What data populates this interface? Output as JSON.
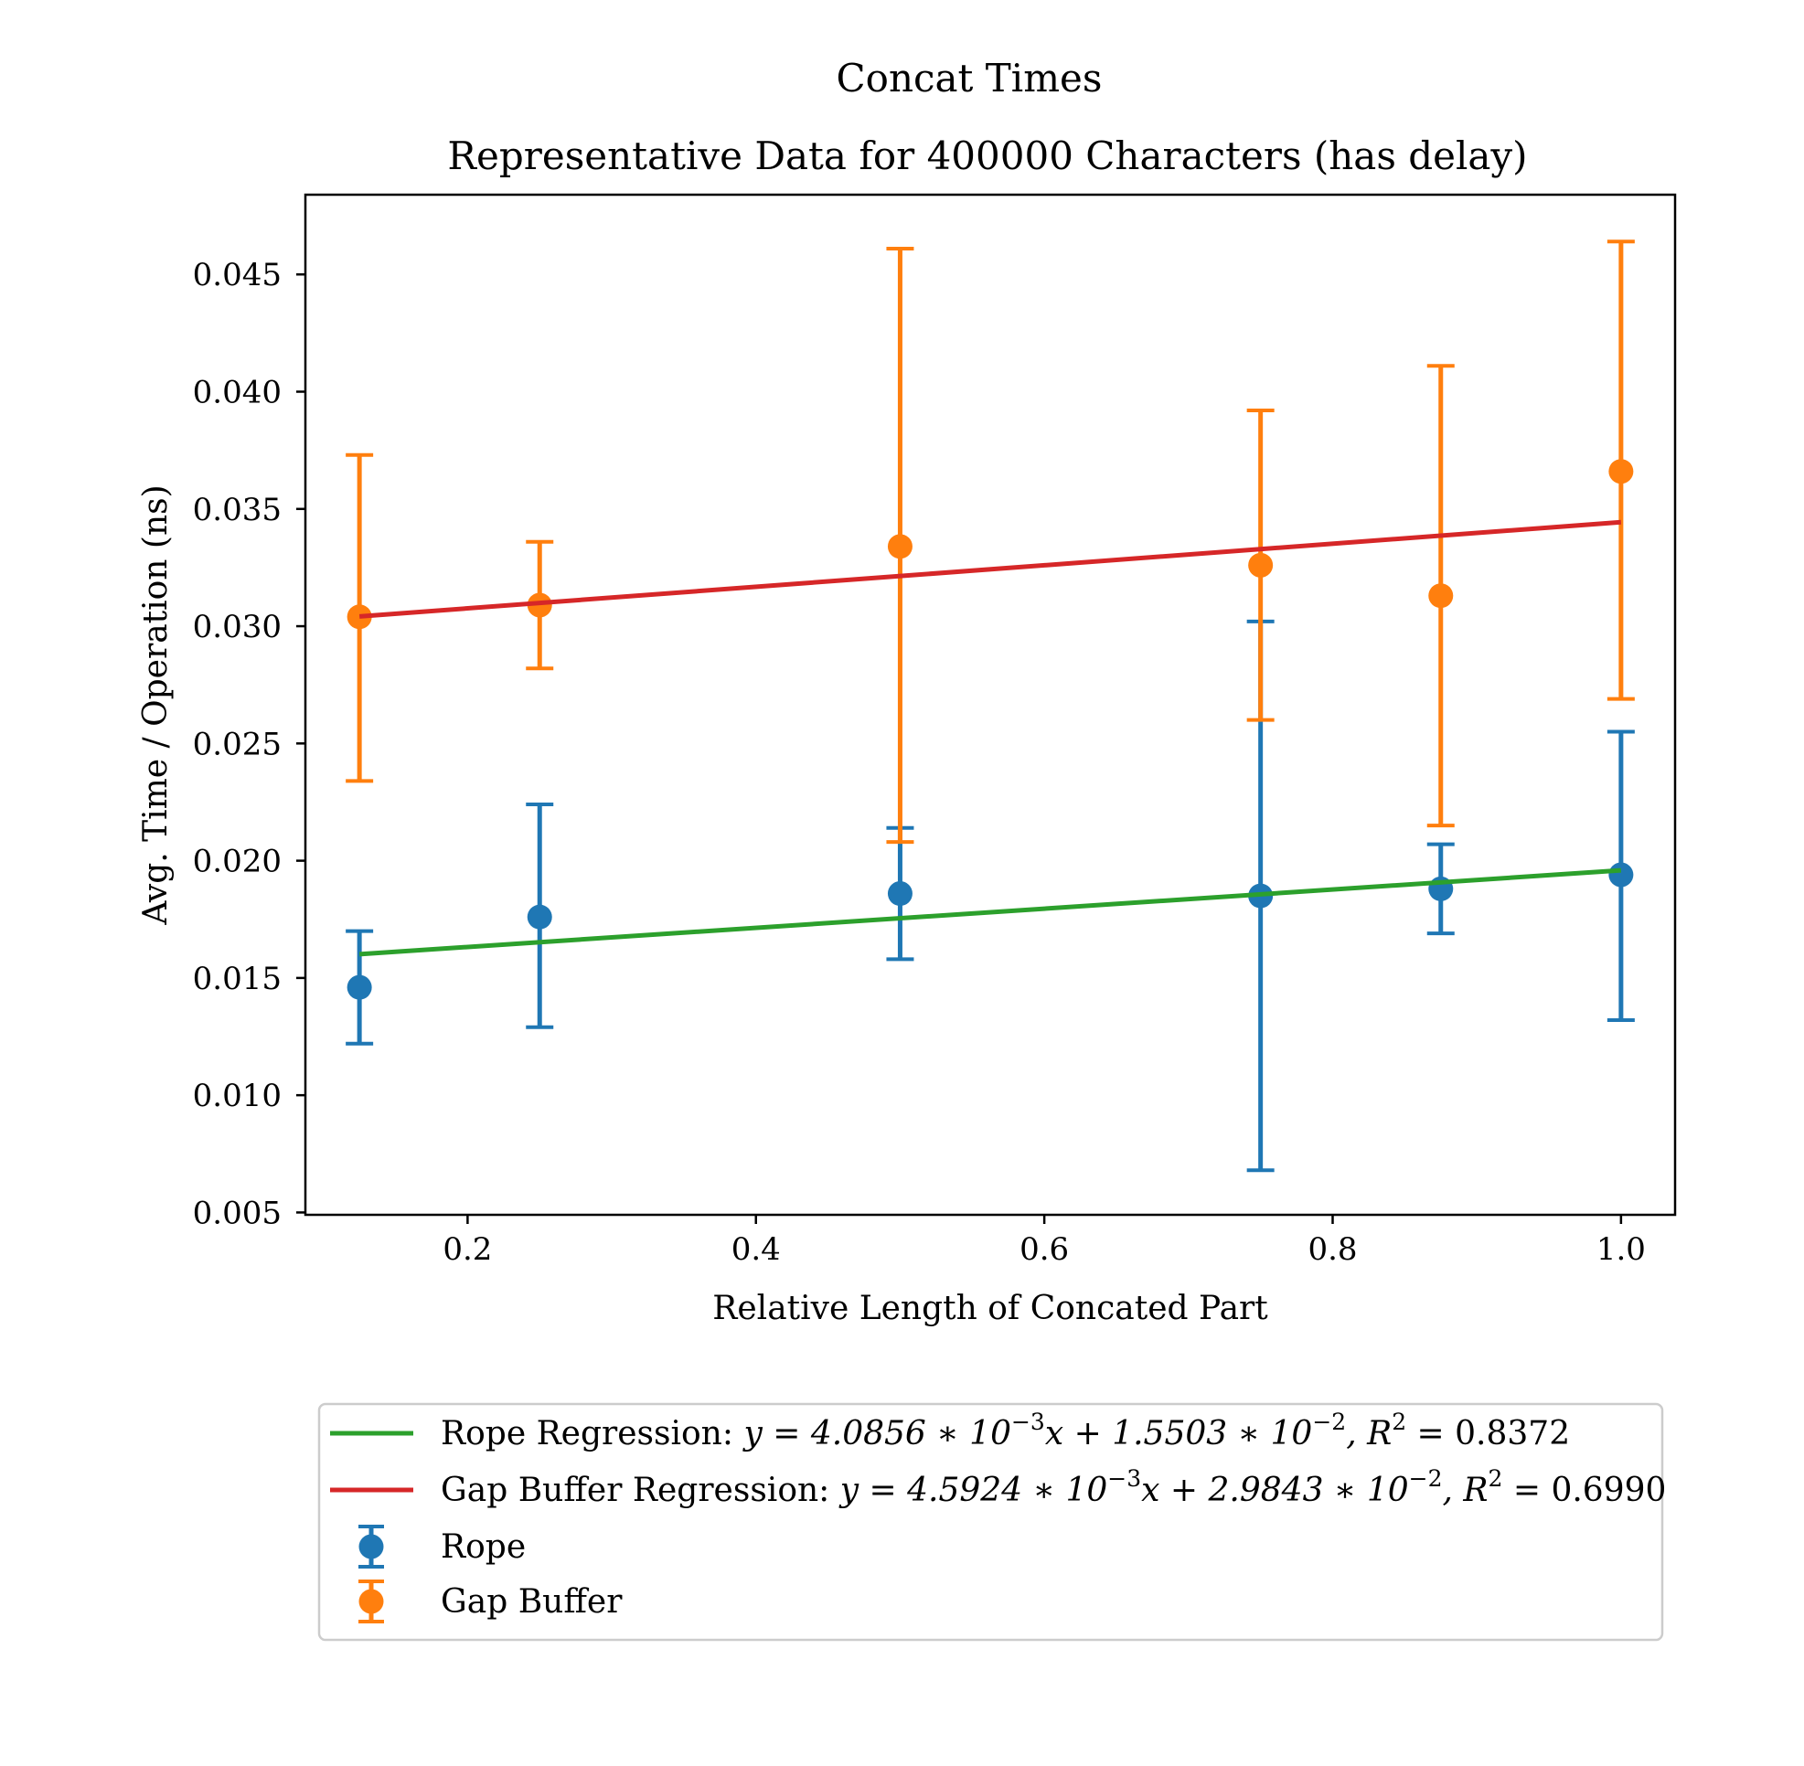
{
  "chart_data": {
    "type": "scatter",
    "suptitle": "Concat Times",
    "title": "Representative Data for 400000 Characters (has delay)",
    "xlabel": "Relative Length of Concated Part",
    "ylabel": "Avg. Time / Operation (ns)",
    "xlim": [
      0.0875,
      1.0375
    ],
    "ylim": [
      0.0049,
      0.0484
    ],
    "xticks": [
      0.2,
      0.4,
      0.6,
      0.8,
      1.0
    ],
    "xtick_labels": [
      "0.2",
      "0.4",
      "0.6",
      "0.8",
      "1.0"
    ],
    "yticks": [
      0.005,
      0.01,
      0.015,
      0.02,
      0.025,
      0.03,
      0.035,
      0.04,
      0.045
    ],
    "ytick_labels": [
      "0.005",
      "0.010",
      "0.015",
      "0.020",
      "0.025",
      "0.030",
      "0.035",
      "0.040",
      "0.045"
    ],
    "grid": false,
    "legend_position": "below",
    "series": [
      {
        "name": "Rope",
        "kind": "errorbar",
        "color": "#1f77b4",
        "x": [
          0.125,
          0.25,
          0.5,
          0.75,
          0.875,
          1.0
        ],
        "y": [
          0.0146,
          0.0176,
          0.0186,
          0.0185,
          0.0188,
          0.0194
        ],
        "yerr_low": [
          0.0122,
          0.0129,
          0.0158,
          0.0068,
          0.0169,
          0.0132
        ],
        "yerr_high": [
          0.017,
          0.0224,
          0.0214,
          0.0302,
          0.0207,
          0.0255
        ]
      },
      {
        "name": "Gap Buffer",
        "kind": "errorbar",
        "color": "#ff7f0e",
        "x": [
          0.125,
          0.25,
          0.5,
          0.75,
          0.875,
          1.0
        ],
        "y": [
          0.0304,
          0.0309,
          0.0334,
          0.0326,
          0.0313,
          0.0366
        ],
        "yerr_low": [
          0.0234,
          0.0282,
          0.0208,
          0.026,
          0.0215,
          0.0269
        ],
        "yerr_high": [
          0.0373,
          0.0336,
          0.0461,
          0.0392,
          0.0411,
          0.0464
        ]
      },
      {
        "name": "Rope Regression",
        "kind": "line",
        "color": "#2ca02c",
        "slope": 0.0040856,
        "intercept": 0.015503,
        "x_range": [
          0.125,
          1.0
        ]
      },
      {
        "name": "Gap Buffer Regression",
        "kind": "line",
        "color": "#d62728",
        "slope": 0.0045924,
        "intercept": 0.029843,
        "x_range": [
          0.125,
          1.0
        ]
      }
    ],
    "legend": [
      {
        "label": "Rope Regression:",
        "formula": "y = 4.0856 ∗ 10",
        "exp1": "−3",
        "mid": "x + 1.5503 ∗ 10",
        "exp2": "−2",
        "r2": ", R",
        "r2exp": "2",
        "r2val": " = 0.8372",
        "color": "#2ca02c",
        "kind": "line"
      },
      {
        "label": "Gap Buffer Regression:",
        "formula": "y = 4.5924 ∗ 10",
        "exp1": "−3",
        "mid": "x + 2.9843 ∗ 10",
        "exp2": "−2",
        "r2": ", R",
        "r2exp": "2",
        "r2val": " = 0.6990",
        "color": "#d62728",
        "kind": "line"
      },
      {
        "label": "Rope",
        "color": "#1f77b4",
        "kind": "errorbar"
      },
      {
        "label": "Gap Buffer",
        "color": "#ff7f0e",
        "kind": "errorbar"
      }
    ]
  }
}
